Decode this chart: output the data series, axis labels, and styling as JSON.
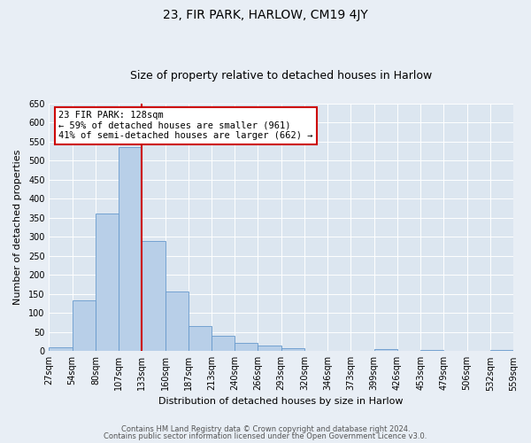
{
  "title": "23, FIR PARK, HARLOW, CM19 4JY",
  "subtitle": "Size of property relative to detached houses in Harlow",
  "xlabel": "Distribution of detached houses by size in Harlow",
  "ylabel": "Number of detached properties",
  "bar_values": [
    10,
    133,
    360,
    535,
    290,
    157,
    65,
    40,
    22,
    15,
    8,
    0,
    0,
    0,
    5,
    0,
    3,
    0,
    0,
    2
  ],
  "bin_labels": [
    "27sqm",
    "54sqm",
    "80sqm",
    "107sqm",
    "133sqm",
    "160sqm",
    "187sqm",
    "213sqm",
    "240sqm",
    "266sqm",
    "293sqm",
    "320sqm",
    "346sqm",
    "373sqm",
    "399sqm",
    "426sqm",
    "453sqm",
    "479sqm",
    "506sqm",
    "532sqm",
    "559sqm"
  ],
  "bar_color": "#b8cfe8",
  "bar_edge_color": "#6699cc",
  "vline_position": 4,
  "vline_color": "#cc0000",
  "annotation_title": "23 FIR PARK: 128sqm",
  "annotation_line1": "← 59% of detached houses are smaller (961)",
  "annotation_line2": "41% of semi-detached houses are larger (662) →",
  "annotation_box_edgecolor": "#cc0000",
  "ylim": [
    0,
    650
  ],
  "yticks": [
    0,
    50,
    100,
    150,
    200,
    250,
    300,
    350,
    400,
    450,
    500,
    550,
    600,
    650
  ],
  "footer1": "Contains HM Land Registry data © Crown copyright and database right 2024.",
  "footer2": "Contains public sector information licensed under the Open Government Licence v3.0.",
  "fig_bg_color": "#e8eef5",
  "plot_bg_color": "#dce6f0",
  "grid_color": "#ffffff",
  "title_fontsize": 10,
  "subtitle_fontsize": 9,
  "axis_label_fontsize": 8,
  "tick_fontsize": 7,
  "footer_fontsize": 6
}
